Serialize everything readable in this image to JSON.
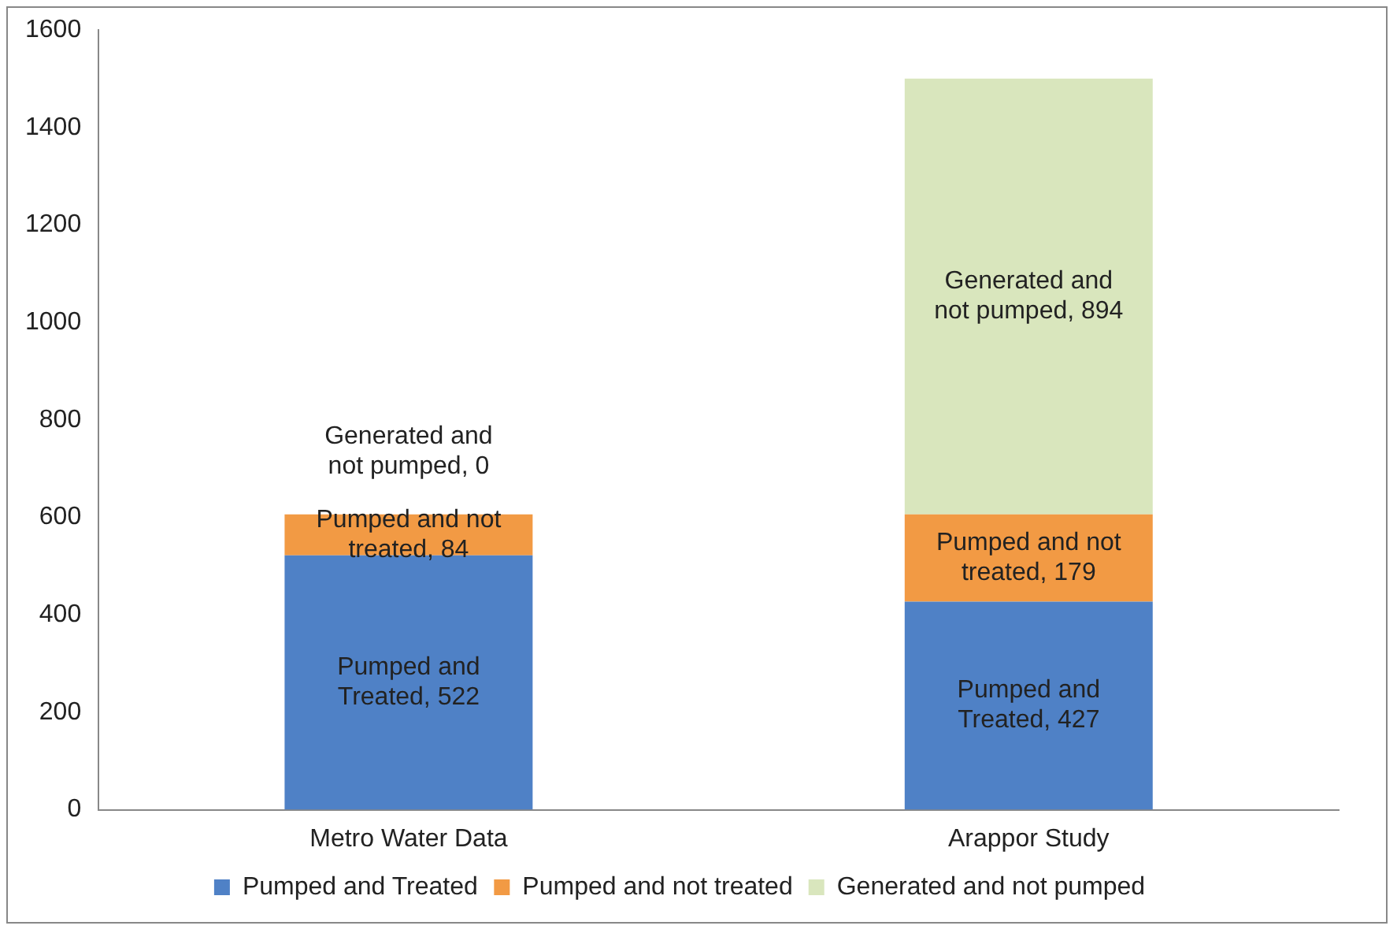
{
  "chart_data": {
    "type": "bar",
    "stacked": true,
    "categories": [
      "Metro Water Data",
      "Arappor Study"
    ],
    "series": [
      {
        "name": "Pumped and Treated",
        "color": "#4f81c6",
        "values": [
          522,
          427
        ],
        "value_labels": [
          "Pumped and Treated, 522",
          "Pumped and Treated, 427"
        ]
      },
      {
        "name": "Pumped and not treated",
        "color": "#f29a44",
        "values": [
          84,
          179
        ],
        "value_labels": [
          "Pumped and not treated, 84",
          "Pumped and not treated, 179"
        ]
      },
      {
        "name": "Generated and not pumped",
        "color": "#d9e6bd",
        "values": [
          0,
          894
        ],
        "value_labels": [
          "Generated and not pumped, 0",
          "Generated and not pumped, 894"
        ]
      }
    ],
    "ylim": [
      0,
      1600
    ],
    "yticks": [
      0,
      200,
      400,
      600,
      800,
      1000,
      1200,
      1400,
      1600
    ],
    "grid": false,
    "legend": "bottom"
  }
}
